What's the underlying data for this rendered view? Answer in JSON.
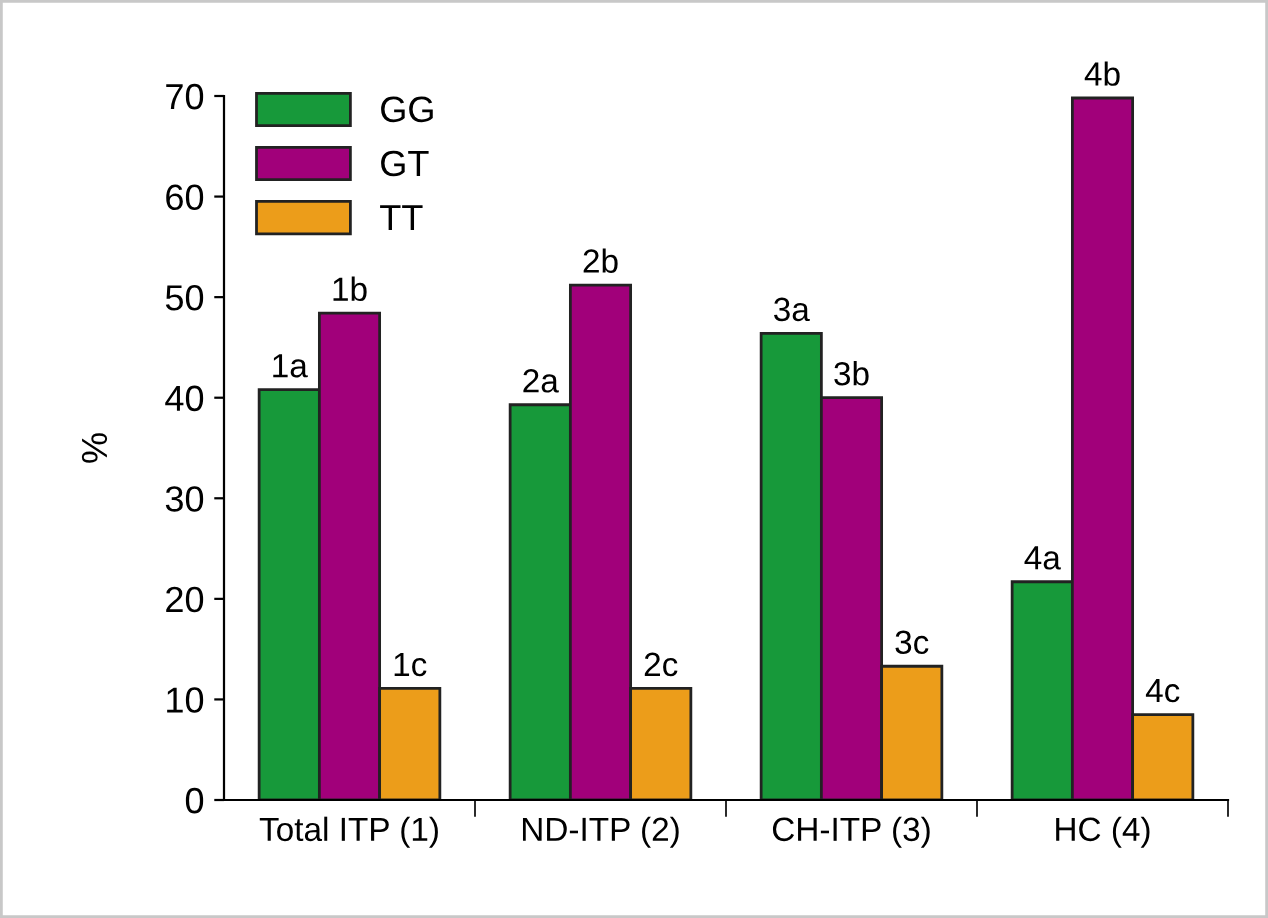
{
  "chart_data": {
    "type": "bar",
    "ylabel": "%",
    "categories": [
      "Total ITP (1)",
      "ND-ITP (2)",
      "CH-ITP (3)",
      "HC (4)"
    ],
    "series": [
      {
        "name": "GG",
        "color": "#17993a",
        "values": [
          40.8,
          39.3,
          46.4,
          21.7
        ]
      },
      {
        "name": "GT",
        "color": "#a1007a",
        "values": [
          48.4,
          51.2,
          40.0,
          69.8
        ]
      },
      {
        "name": "TT",
        "color": "#ec9d1a",
        "values": [
          11.1,
          11.1,
          13.3,
          8.5
        ]
      }
    ],
    "annotations": [
      "1a",
      "1b",
      "1c",
      "2a",
      "2b",
      "2c",
      "3a",
      "3b",
      "3c",
      "4a",
      "4b",
      "4c"
    ],
    "ylim": [
      0,
      70
    ],
    "yticks": [
      0,
      10,
      20,
      30,
      40,
      50,
      60,
      70
    ],
    "grid": false,
    "legend": "top left"
  }
}
